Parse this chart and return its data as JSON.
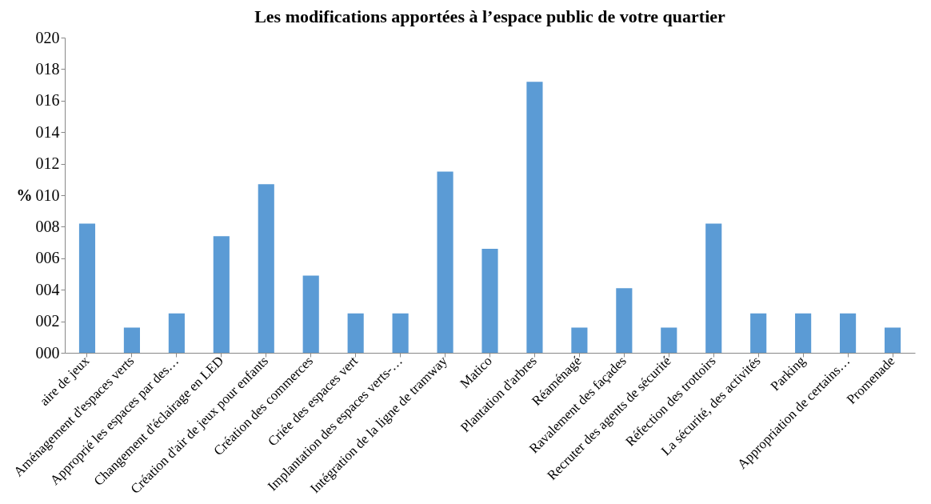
{
  "chart_data": {
    "type": "bar",
    "title": "Les modifications apportées à l’espace public de votre quartier",
    "ylabel": "%",
    "categories": [
      "aire de jeux",
      "Aménagement d'espaces verts",
      "Approprié les espaces par des…",
      "Changement d'éclairage en LED",
      "Création d'air de jeux pour enfants",
      "Création des commerces",
      "Criée des espaces vert",
      "Implantation des espaces verts-…",
      "Intégration de la ligne de tramway",
      "Matico",
      "Plantation d'arbres",
      "Réaménagé",
      "Ravalement des façades",
      "Recruter des agents de sécurité",
      "Réfection des trottoirs",
      "La sécurité, des activités",
      "Parking",
      "Appropriation de certains…",
      "Promenade"
    ],
    "values": [
      8.2,
      1.6,
      2.5,
      7.4,
      10.7,
      4.9,
      2.5,
      2.5,
      11.5,
      6.6,
      17.2,
      1.6,
      4.1,
      1.6,
      8.2,
      2.5,
      2.5,
      2.5,
      1.6
    ],
    "color": "#5b9bd5",
    "ylim": [
      0,
      20
    ],
    "yticks": [
      {
        "value": 0,
        "label": "000"
      },
      {
        "value": 2,
        "label": "002"
      },
      {
        "value": 4,
        "label": "004"
      },
      {
        "value": 6,
        "label": "006"
      },
      {
        "value": 8,
        "label": "008"
      },
      {
        "value": 10,
        "label": "010"
      },
      {
        "value": 12,
        "label": "012"
      },
      {
        "value": 14,
        "label": "014"
      },
      {
        "value": 16,
        "label": "016"
      },
      {
        "value": 18,
        "label": "018"
      },
      {
        "value": 20,
        "label": "020"
      }
    ],
    "grid": false
  }
}
